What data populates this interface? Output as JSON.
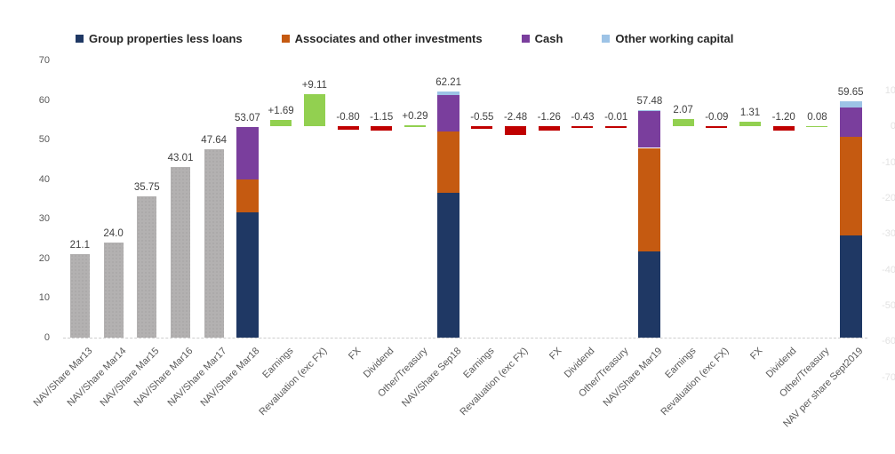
{
  "chart_data": {
    "type": "bar",
    "subtype": "waterfall-with-stacked-totals",
    "title": "",
    "legend": [
      "Group properties less loans",
      "Associates and other investments",
      "Cash",
      "Other working capital"
    ],
    "series_colors": {
      "Group properties less loans": "#1f3864",
      "Associates and other investments": "#c55a11",
      "Cash": "#7a3e9d",
      "Other working capital": "#9dc3e6"
    },
    "delta_colors": {
      "positive": "#92d050",
      "negative": "#c00000"
    },
    "prior_year_bar_color": "#b3b1b1",
    "grid": "off",
    "legend_position": "top",
    "left_axis": {
      "min": 0,
      "max": 70,
      "step": 10,
      "ticks": [
        "70",
        "60",
        "50",
        "40",
        "30",
        "20",
        "10",
        "0"
      ]
    },
    "right_axis": {
      "min": -70,
      "max": 10,
      "step": 10,
      "ticks": [
        "10",
        "0",
        "-10",
        "-20",
        "-30",
        "-40",
        "-50",
        "-60",
        "-70"
      ]
    },
    "bars": [
      {
        "category": "NAV/Share Mar13",
        "kind": "gray",
        "value": 21.1,
        "value_label": "21.1"
      },
      {
        "category": "NAV/Share Mar14",
        "kind": "gray",
        "value": 24.0,
        "value_label": "24.0"
      },
      {
        "category": "NAV/Share Mar15",
        "kind": "gray",
        "value": 35.75,
        "value_label": "35.75"
      },
      {
        "category": "NAV/Share Mar16",
        "kind": "gray",
        "value": 43.01,
        "value_label": "43.01"
      },
      {
        "category": "NAV/Share Mar17",
        "kind": "gray",
        "value": 47.64,
        "value_label": "47.64"
      },
      {
        "category": "NAV/Share Mar18",
        "kind": "stack",
        "total": 53.07,
        "value_label": "53.07",
        "segments": [
          {
            "series": "Group properties less loans",
            "value": 31.6
          },
          {
            "series": "Associates and other investments",
            "value": 8.3
          },
          {
            "series": "Cash",
            "value": 13.17
          }
        ]
      },
      {
        "category": "Earnings",
        "kind": "delta",
        "value": 1.69,
        "value_label": "+1.69"
      },
      {
        "category": "Revaluation (exc FX)",
        "kind": "delta",
        "value": 9.11,
        "value_label": "+9.11"
      },
      {
        "category": "FX",
        "kind": "delta",
        "value": -0.8,
        "value_label": "-0.80"
      },
      {
        "category": "Dividend",
        "kind": "delta",
        "value": -1.15,
        "value_label": "-1.15"
      },
      {
        "category": "Other/Treasury",
        "kind": "delta",
        "value": 0.29,
        "value_label": "+0.29"
      },
      {
        "category": "NAV/Share Sep18",
        "kind": "stack",
        "total": 62.21,
        "value_label": "62.21",
        "segments": [
          {
            "series": "Group properties less loans",
            "value": 36.5
          },
          {
            "series": "Associates and other investments",
            "value": 15.6
          },
          {
            "series": "Cash",
            "value": 9.2
          },
          {
            "series": "Other working capital",
            "value": 0.91
          }
        ]
      },
      {
        "category": "Earnings",
        "kind": "delta",
        "value": -0.55,
        "value_label": "-0.55"
      },
      {
        "category": "Revaluation (exc FX)",
        "kind": "delta",
        "value": -2.48,
        "value_label": "-2.48"
      },
      {
        "category": "FX",
        "kind": "delta",
        "value": -1.26,
        "value_label": "-1.26"
      },
      {
        "category": "Dividend",
        "kind": "delta",
        "value": -0.43,
        "value_label": "-0.43"
      },
      {
        "category": "Other/Treasury",
        "kind": "delta",
        "value": -0.01,
        "value_label": "-0.01"
      },
      {
        "category": "NAV/Share Mar19",
        "kind": "stack",
        "total": 57.48,
        "value_label": "57.48",
        "segments": [
          {
            "series": "Group properties less loans",
            "value": 21.7
          },
          {
            "series": "Associates and other investments",
            "value": 26.2
          },
          {
            "series": "Cash",
            "value": 9.25
          },
          {
            "series": "Other working capital",
            "value": 0.33
          }
        ]
      },
      {
        "category": "Earnings",
        "kind": "delta",
        "value": 2.07,
        "value_label": "2.07"
      },
      {
        "category": "Revaluation (exc FX)",
        "kind": "delta",
        "value": -0.09,
        "value_label": "-0.09"
      },
      {
        "category": "FX",
        "kind": "delta",
        "value": 1.31,
        "value_label": "1.31"
      },
      {
        "category": "Dividend",
        "kind": "delta",
        "value": -1.2,
        "value_label": "-1.20"
      },
      {
        "category": "Other/Treasury",
        "kind": "delta",
        "value": 0.08,
        "value_label": "0.08"
      },
      {
        "category": "NAV per share Sept2019",
        "kind": "stack",
        "total": 59.65,
        "value_label": "59.65",
        "segments": [
          {
            "series": "Group properties less loans",
            "value": 25.9
          },
          {
            "series": "Associates and other investments",
            "value": 24.75
          },
          {
            "series": "Cash",
            "value": 7.55
          },
          {
            "series": "Other working capital",
            "value": 1.45
          }
        ]
      }
    ]
  }
}
